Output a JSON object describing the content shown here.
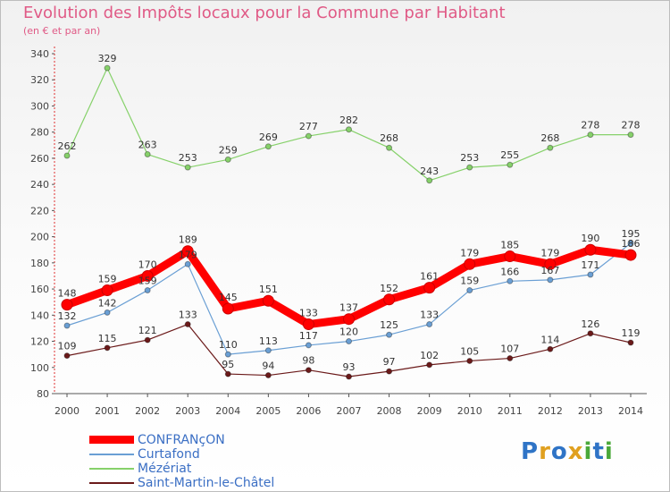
{
  "chart": {
    "title": "Evolution des Impôts locaux pour la Commune par Habitant",
    "subtitle": "(en € et par an)"
  },
  "logo": {
    "letters": [
      "P",
      "r",
      "o",
      "x",
      "i",
      "t",
      "i"
    ],
    "colors": [
      "#2f74c6",
      "#e0a020",
      "#2f74c6",
      "#e0a020",
      "#4aa83a",
      "#2f74c6",
      "#4aa83a"
    ]
  },
  "chart_data": {
    "type": "line",
    "title": "Evolution des Impôts locaux pour la Commune par Habitant",
    "subtitle": "(en € et par an)",
    "xlabel": "",
    "ylabel": "",
    "ylim": [
      80,
      340
    ],
    "yticks": [
      80,
      100,
      120,
      140,
      160,
      180,
      200,
      220,
      240,
      260,
      280,
      300,
      320,
      340
    ],
    "grid": false,
    "legend_position": "bottom-left",
    "x": [
      "2000",
      "2001",
      "2002",
      "2003",
      "2004",
      "2005",
      "2006",
      "2007",
      "2008",
      "2009",
      "2010",
      "2011",
      "2012",
      "2013",
      "2014"
    ],
    "series": [
      {
        "name": "CONFRANçON",
        "color": "#ff0000",
        "values": [
          148,
          159,
          170,
          189,
          145,
          151,
          133,
          137,
          152,
          161,
          179,
          185,
          179,
          190,
          186
        ]
      },
      {
        "name": "Curtafond",
        "color": "#6a9fd4",
        "values": [
          132,
          142,
          159,
          179,
          110,
          113,
          117,
          120,
          125,
          133,
          159,
          166,
          167,
          171,
          195
        ]
      },
      {
        "name": "Mézériat",
        "color": "#86d16a",
        "values": [
          262,
          329,
          263,
          253,
          259,
          269,
          277,
          282,
          268,
          243,
          253,
          255,
          268,
          278,
          278
        ]
      },
      {
        "name": "Saint-Martin-le-Châtel",
        "color": "#6b1a1a",
        "values": [
          109,
          115,
          121,
          133,
          95,
          94,
          98,
          93,
          97,
          102,
          105,
          107,
          114,
          126,
          119
        ]
      }
    ]
  }
}
